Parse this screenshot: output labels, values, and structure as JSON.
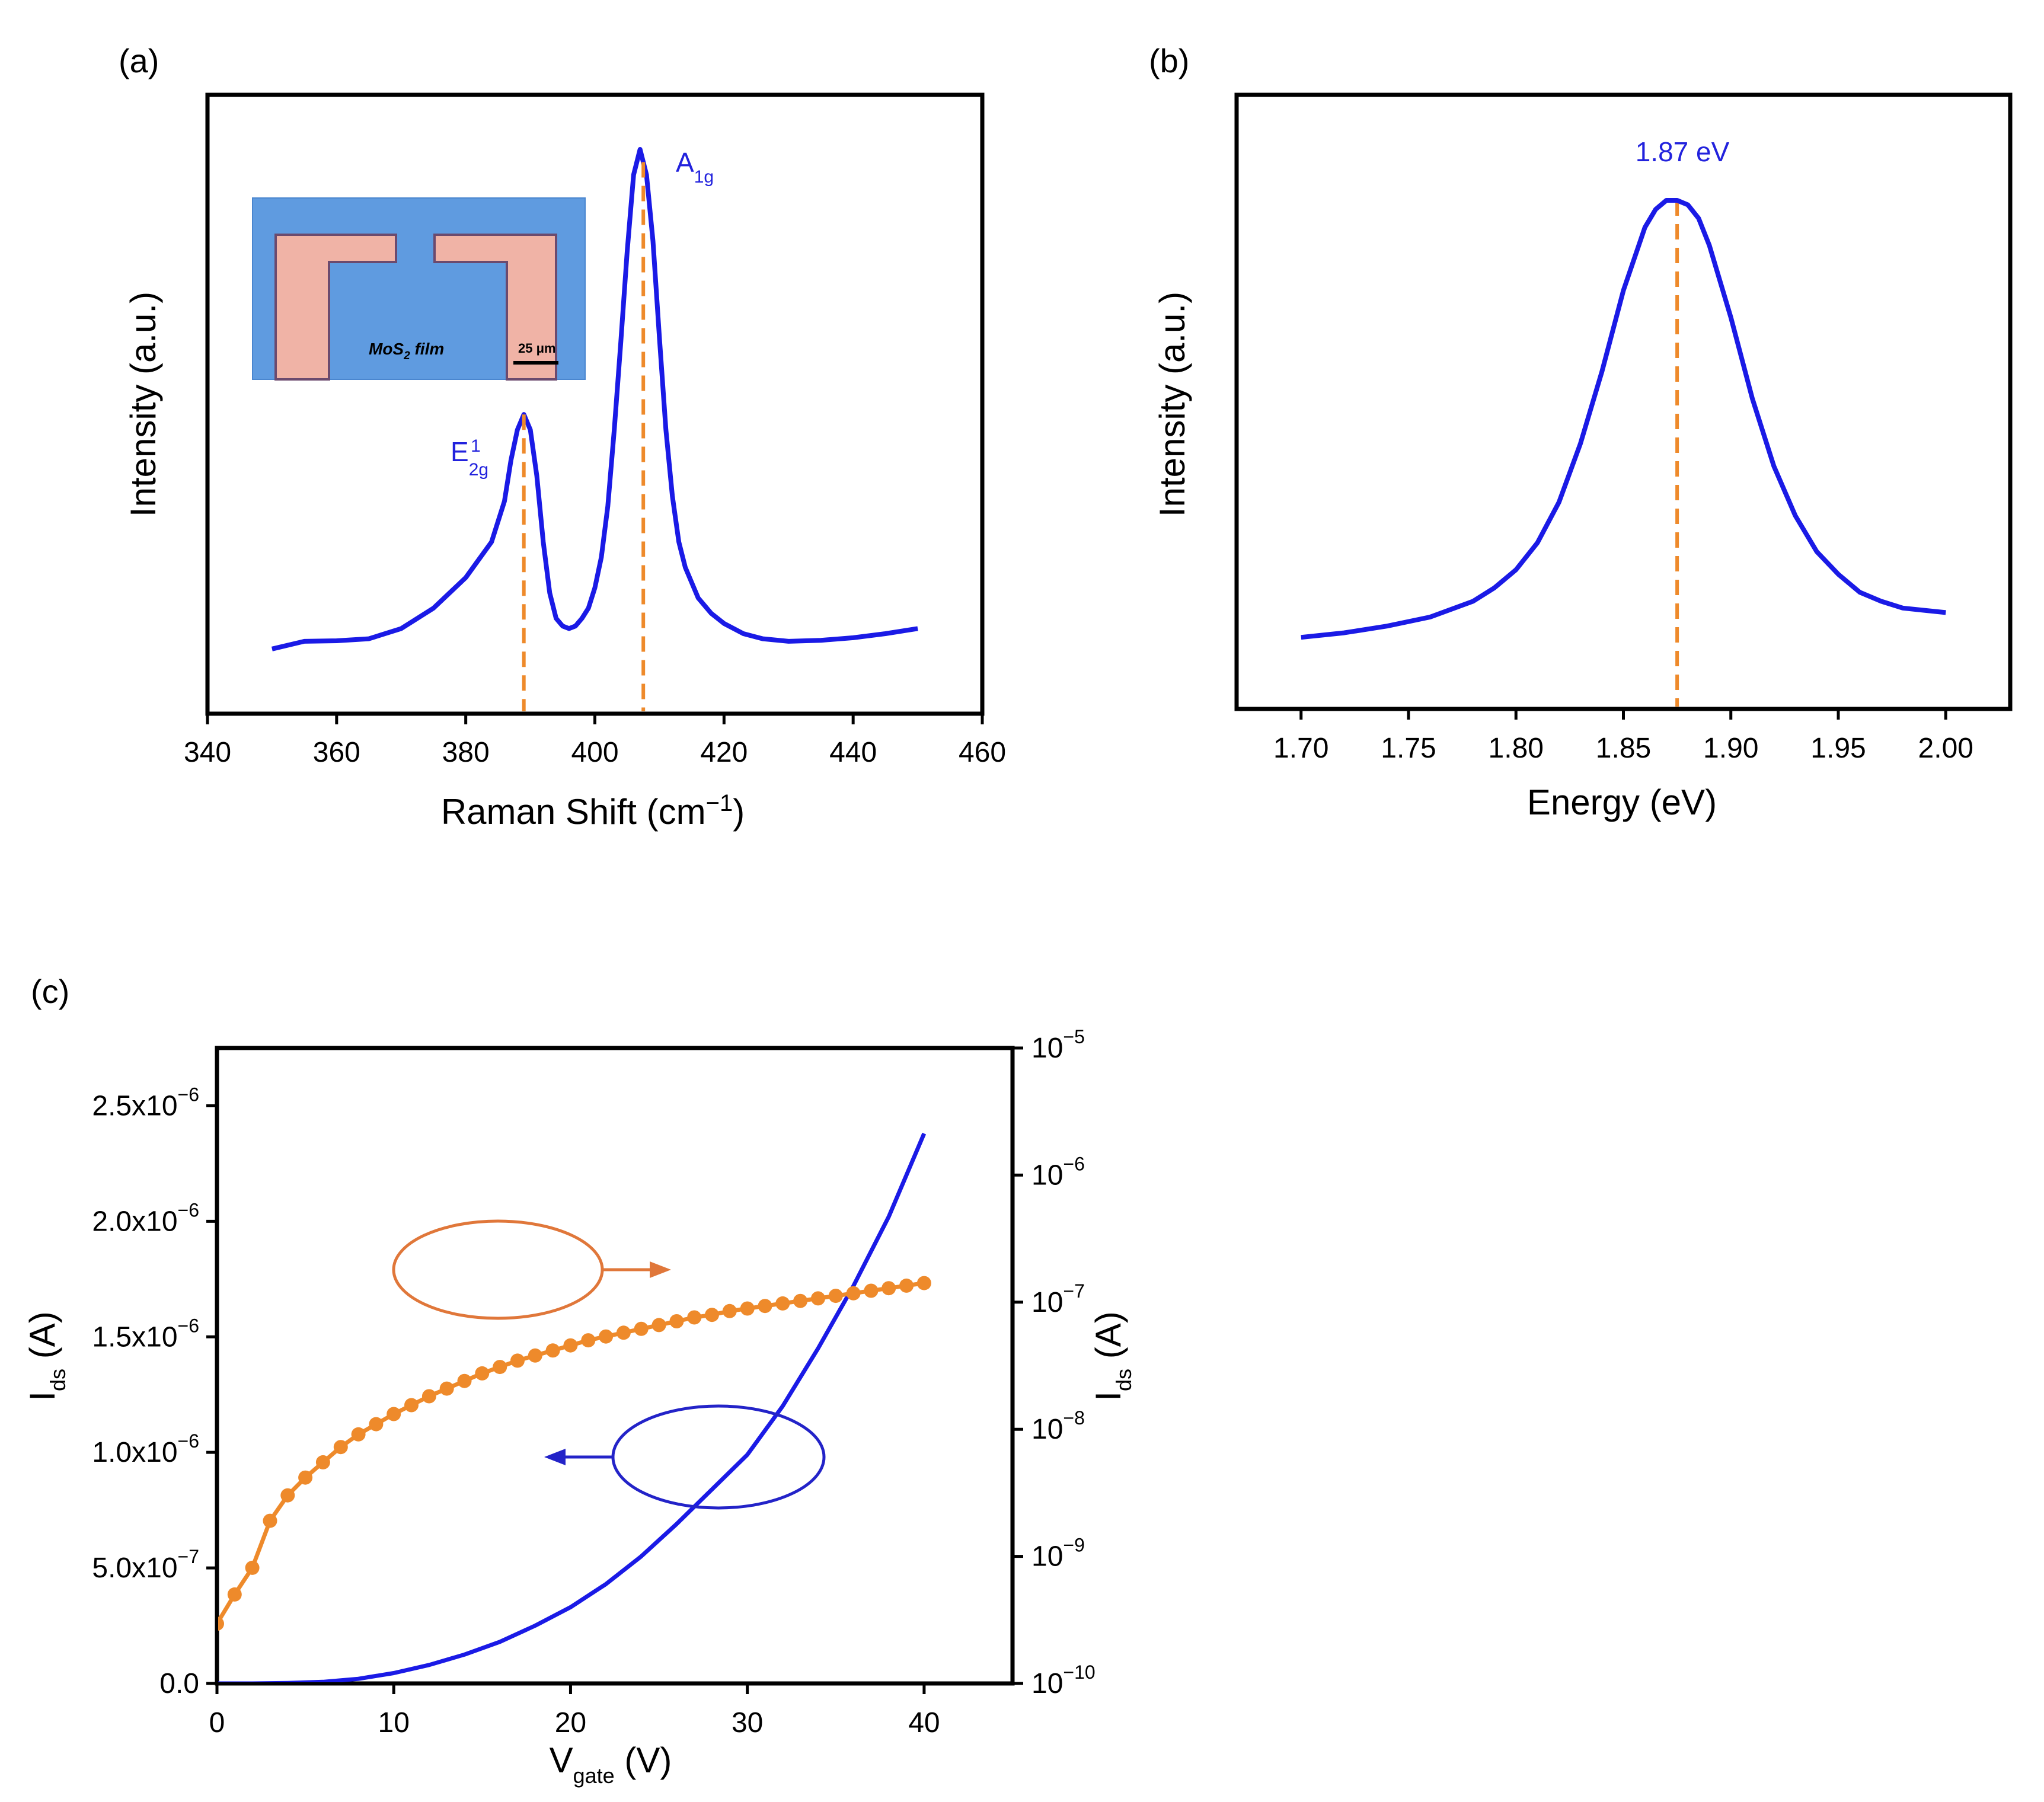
{
  "colors": {
    "blue": "#1a1ae6",
    "orange": "#ee8a2b",
    "ellipse_orange": "#e0773a",
    "ellipse_blue": "#2323c8",
    "axis": "#000000"
  },
  "chart_data": [
    {
      "panel_label": "(a)",
      "type": "line",
      "xlabel": "Raman Shift (cm",
      "xlabel_unit_sup": "−1",
      "xlabel_close": ")",
      "ylabel": "Intensity (a.u.)",
      "xlim": [
        340,
        460
      ],
      "xticks": [
        "340",
        "360",
        "380",
        "400",
        "420",
        "440",
        "460"
      ],
      "series": [
        {
          "name": "Raman spectrum",
          "x": [
            350,
            355,
            360,
            365,
            370,
            375,
            380,
            384,
            386,
            387,
            388,
            389,
            390,
            391,
            392,
            393,
            394,
            395,
            396,
            397,
            398,
            399,
            400,
            401,
            402,
            403,
            404,
            405,
            406,
            407,
            408,
            409,
            410,
            411,
            412,
            413,
            414,
            415,
            416,
            418,
            420,
            423,
            426,
            430,
            435,
            440,
            445,
            450
          ],
          "y": [
            0.02,
            0.035,
            0.036,
            0.04,
            0.06,
            0.1,
            0.16,
            0.23,
            0.31,
            0.39,
            0.45,
            0.48,
            0.45,
            0.36,
            0.23,
            0.13,
            0.08,
            0.065,
            0.06,
            0.065,
            0.08,
            0.1,
            0.14,
            0.2,
            0.3,
            0.45,
            0.62,
            0.8,
            0.95,
            1.0,
            0.95,
            0.82,
            0.63,
            0.45,
            0.32,
            0.23,
            0.18,
            0.15,
            0.12,
            0.09,
            0.07,
            0.05,
            0.04,
            0.035,
            0.037,
            0.042,
            0.05,
            0.06
          ]
        }
      ],
      "peaks": [
        {
          "x": 389,
          "base": "E",
          "sub": "2g",
          "sup": "1"
        },
        {
          "x": 407.5,
          "base": "A",
          "sub": "1g",
          "sup": ""
        }
      ],
      "inset": {
        "film_label": "MoS",
        "film_sub": "2",
        "film_suffix": " film",
        "scale_bar": "25 μm"
      }
    },
    {
      "panel_label": "(b)",
      "type": "line",
      "xlabel": "Energy (eV)",
      "ylabel": "Intensity (a.u.)",
      "xlim": [
        1.67,
        2.03
      ],
      "xticks": [
        "1.70",
        "1.75",
        "1.80",
        "1.85",
        "1.90",
        "1.95",
        "2.00"
      ],
      "peak_center": 1.875,
      "peak_label": "1.87 eV",
      "series": [
        {
          "name": "PL spectrum",
          "x": [
            1.7,
            1.72,
            1.74,
            1.76,
            1.78,
            1.79,
            1.8,
            1.81,
            1.82,
            1.83,
            1.84,
            1.85,
            1.86,
            1.865,
            1.87,
            1.875,
            1.88,
            1.885,
            1.89,
            1.9,
            1.91,
            1.92,
            1.93,
            1.94,
            1.95,
            1.96,
            1.97,
            1.98,
            1.99,
            2.0
          ],
          "y": [
            0.03,
            0.04,
            0.055,
            0.075,
            0.11,
            0.14,
            0.18,
            0.24,
            0.33,
            0.46,
            0.62,
            0.8,
            0.94,
            0.98,
            1.0,
            1.0,
            0.99,
            0.96,
            0.9,
            0.74,
            0.56,
            0.41,
            0.3,
            0.22,
            0.17,
            0.13,
            0.11,
            0.095,
            0.09,
            0.085
          ]
        }
      ]
    },
    {
      "panel_label": "(c)",
      "type": "line",
      "xlabel": "V",
      "xlabel_sub": "gate",
      "xlabel_unit": " (V)",
      "ylabel_left": "I",
      "ylabel_left_sub": "ds",
      "ylabel_left_unit": " (A)",
      "ylabel_right": "I",
      "ylabel_right_sub": "ds",
      "ylabel_right_unit": " (A)",
      "xlim": [
        0,
        45
      ],
      "xticks": [
        "0",
        "10",
        "20",
        "30",
        "40"
      ],
      "ylim_left": [
        0,
        2.75e-06
      ],
      "yticks_left": [
        {
          "base": "0.0",
          "exp": ""
        },
        {
          "base": "5.0x10",
          "exp": "−7"
        },
        {
          "base": "1.0x10",
          "exp": "−6"
        },
        {
          "base": "1.5x10",
          "exp": "−6"
        },
        {
          "base": "2.0x10",
          "exp": "−6"
        },
        {
          "base": "2.5x10",
          "exp": "−6"
        }
      ],
      "ylim_right_log10": [
        -10,
        -5
      ],
      "yticks_right": [
        {
          "base": "10",
          "exp": "−10"
        },
        {
          "base": "10",
          "exp": "−9"
        },
        {
          "base": "10",
          "exp": "−8"
        },
        {
          "base": "10",
          "exp": "−7"
        },
        {
          "base": "10",
          "exp": "−6"
        },
        {
          "base": "10",
          "exp": "−5"
        }
      ],
      "series": [
        {
          "name": "Ids linear (left axis)",
          "axis": "left",
          "x": [
            0,
            2,
            4,
            6,
            8,
            10,
            12,
            14,
            16,
            18,
            20,
            22,
            24,
            26,
            28,
            30,
            32,
            34,
            36,
            38,
            40
          ],
          "y": [
            0,
            0,
            2e-09,
            7e-09,
            2e-08,
            4.5e-08,
            8e-08,
            1.25e-07,
            1.8e-07,
            2.5e-07,
            3.3e-07,
            4.3e-07,
            5.5e-07,
            6.9e-07,
            8.4e-07,
            9.9e-07,
            1.2e-06,
            1.45e-06,
            1.72e-06,
            2.02e-06,
            2.38e-06
          ]
        },
        {
          "name": "Ids log (right axis)",
          "axis": "right",
          "x": [
            0,
            1,
            2,
            3,
            4,
            5,
            6,
            7,
            8,
            9,
            10,
            11,
            12,
            13,
            14,
            15,
            16,
            17,
            18,
            19,
            20,
            21,
            22,
            23,
            24,
            25,
            26,
            27,
            28,
            29,
            30,
            31,
            32,
            33,
            34,
            35,
            36,
            37,
            38,
            39,
            40
          ],
          "log10_y": [
            -9.53,
            -9.3,
            -9.09,
            -8.72,
            -8.52,
            -8.38,
            -8.26,
            -8.14,
            -8.04,
            -7.96,
            -7.88,
            -7.81,
            -7.74,
            -7.68,
            -7.62,
            -7.56,
            -7.51,
            -7.46,
            -7.42,
            -7.38,
            -7.34,
            -7.3,
            -7.27,
            -7.24,
            -7.21,
            -7.18,
            -7.15,
            -7.12,
            -7.1,
            -7.07,
            -7.05,
            -7.03,
            -7.01,
            -6.99,
            -6.97,
            -6.95,
            -6.93,
            -6.91,
            -6.89,
            -6.87,
            -6.85
          ]
        }
      ]
    }
  ]
}
